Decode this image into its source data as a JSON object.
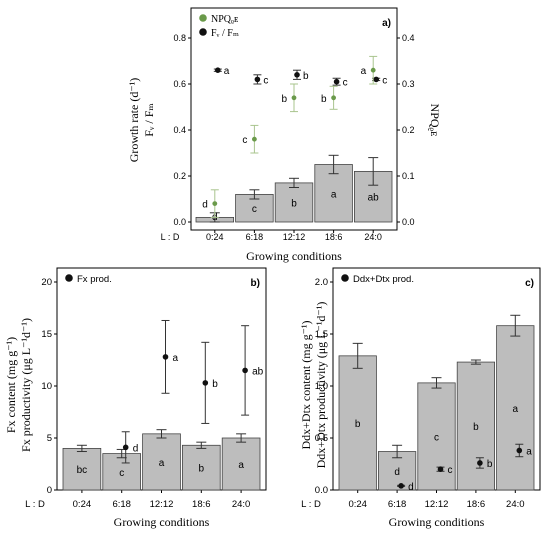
{
  "colors": {
    "bar": "#bdbdbd",
    "bar_stroke": "#444444",
    "point_fv": "#111111",
    "point_npq": "#6a9a4a",
    "err_npq": "#a9c48e",
    "axis": "#000000"
  },
  "chart_data": [
    {
      "id": "a",
      "type": "bar",
      "panel_letter": "a)",
      "categories": [
        "0:24",
        "6:18",
        "12:12",
        "18:6",
        "24:0"
      ],
      "lightdark_label": "L : D",
      "xlabel": "Growing conditions",
      "ylabel_lines": [
        "Growth rate (d⁻¹)",
        "Fᵥ / Fₘ"
      ],
      "ylabel2": "NPQᵨᴇ",
      "ylim": [
        0,
        0.8
      ],
      "yticks": [
        "0.0",
        "0.2",
        "0.4",
        "0.6",
        "0.8"
      ],
      "ylim2": [
        0,
        0.4
      ],
      "yticks2": [
        "0.0",
        "0.1",
        "0.2",
        "0.3",
        "0.4"
      ],
      "legend": [
        {
          "name": "NPQᵨᴇ",
          "kind": "npq"
        },
        {
          "name": "Fᵥ / Fₘ",
          "kind": "fv"
        }
      ],
      "series": [
        {
          "kind": "bar",
          "values": [
            0.02,
            0.12,
            0.17,
            0.25,
            0.22
          ],
          "err": [
            0.02,
            0.02,
            0.02,
            0.04,
            0.06
          ],
          "letters": [
            "d",
            "c",
            "b",
            "a",
            "ab"
          ]
        },
        {
          "kind": "fv",
          "values": [
            0.66,
            0.62,
            0.64,
            0.61,
            0.62
          ],
          "err": [
            0.005,
            0.02,
            0.02,
            0.015,
            0.005
          ],
          "letters": [
            "a",
            "c",
            "b",
            "c",
            "c"
          ]
        },
        {
          "kind": "npq",
          "axis": "right",
          "values": [
            0.04,
            0.18,
            0.27,
            0.27,
            0.33
          ],
          "err": [
            0.03,
            0.03,
            0.03,
            0.025,
            0.03
          ],
          "letters": [
            "d",
            "c",
            "b",
            "b",
            "a"
          ]
        }
      ]
    },
    {
      "id": "b",
      "type": "bar",
      "panel_letter": "b)",
      "categories": [
        "0:24",
        "6:18",
        "12:12",
        "18:6",
        "24:0"
      ],
      "lightdark_label": "L : D",
      "xlabel": "Growing conditions",
      "ylabel_lines": [
        "Fx content (mg g⁻¹)",
        "Fx productivity (μg L⁻¹d⁻¹)"
      ],
      "ylim": [
        0,
        20
      ],
      "yticks": [
        "0",
        "5",
        "10",
        "15",
        "20"
      ],
      "legend": [
        {
          "name": "Fx prod.",
          "kind": "fv"
        }
      ],
      "series": [
        {
          "kind": "bar",
          "values": [
            4.0,
            3.5,
            5.4,
            4.3,
            5.0
          ],
          "err": [
            0.3,
            0.4,
            0.4,
            0.3,
            0.4
          ],
          "letters": [
            "bc",
            "c",
            "a",
            "b",
            "a"
          ]
        },
        {
          "kind": "fv",
          "values": [
            null,
            4.1,
            12.8,
            10.3,
            11.5
          ],
          "err": [
            0,
            1.5,
            3.5,
            3.9,
            4.3
          ],
          "letters": [
            null,
            "d",
            "a",
            "b",
            "ab"
          ]
        }
      ]
    },
    {
      "id": "c",
      "type": "bar",
      "panel_letter": "c)",
      "categories": [
        "0:24",
        "6:18",
        "12:12",
        "18:6",
        "24:0"
      ],
      "lightdark_label": "L : D",
      "xlabel": "Growing conditions",
      "ylabel_lines": [
        "Ddx+Dtx content (mg g⁻¹)",
        "Ddx+Dtx productivity (μg L⁻¹d⁻¹)"
      ],
      "ylim": [
        0,
        2.0
      ],
      "yticks": [
        "0.0",
        "0.5",
        "1.0",
        "1.5",
        "2.0"
      ],
      "legend": [
        {
          "name": "Ddx+Dtx prod.",
          "kind": "fv"
        }
      ],
      "series": [
        {
          "kind": "bar",
          "values": [
            1.29,
            0.37,
            1.03,
            1.23,
            1.58
          ],
          "err": [
            0.12,
            0.06,
            0.05,
            0.02,
            0.1
          ],
          "letters": [
            "b",
            "d",
            "c",
            "b",
            "a"
          ]
        },
        {
          "kind": "fv",
          "values": [
            null,
            0.04,
            0.2,
            0.26,
            0.38
          ],
          "err": [
            0,
            0.005,
            0.02,
            0.05,
            0.06
          ],
          "letters": [
            null,
            "d",
            "c",
            "b",
            "a"
          ]
        }
      ]
    }
  ]
}
